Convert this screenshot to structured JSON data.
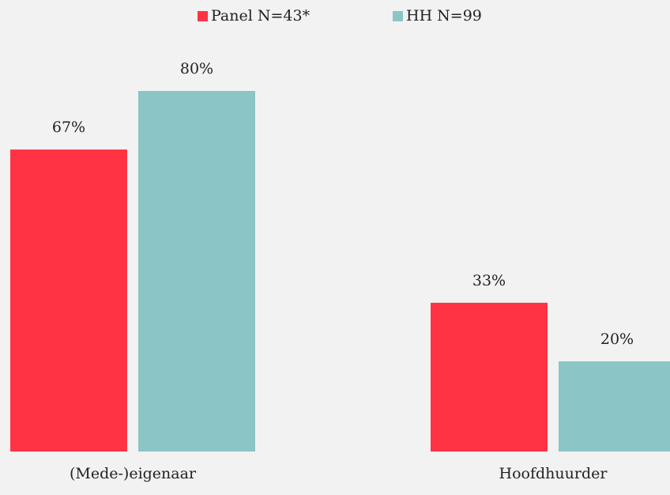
{
  "chart_data": {
    "type": "bar",
    "categories": [
      "(Mede-)eigenaar",
      "Hoofdhuurder"
    ],
    "series": [
      {
        "name": "Panel N=43*",
        "color": "#ff3344",
        "values": [
          67,
          33
        ],
        "value_labels": [
          "67%",
          "33%"
        ]
      },
      {
        "name": "HH N=99",
        "color": "#8cc5c5",
        "values": [
          80,
          20
        ],
        "value_labels": [
          "80%",
          "20%"
        ]
      }
    ],
    "legend": "top"
  }
}
